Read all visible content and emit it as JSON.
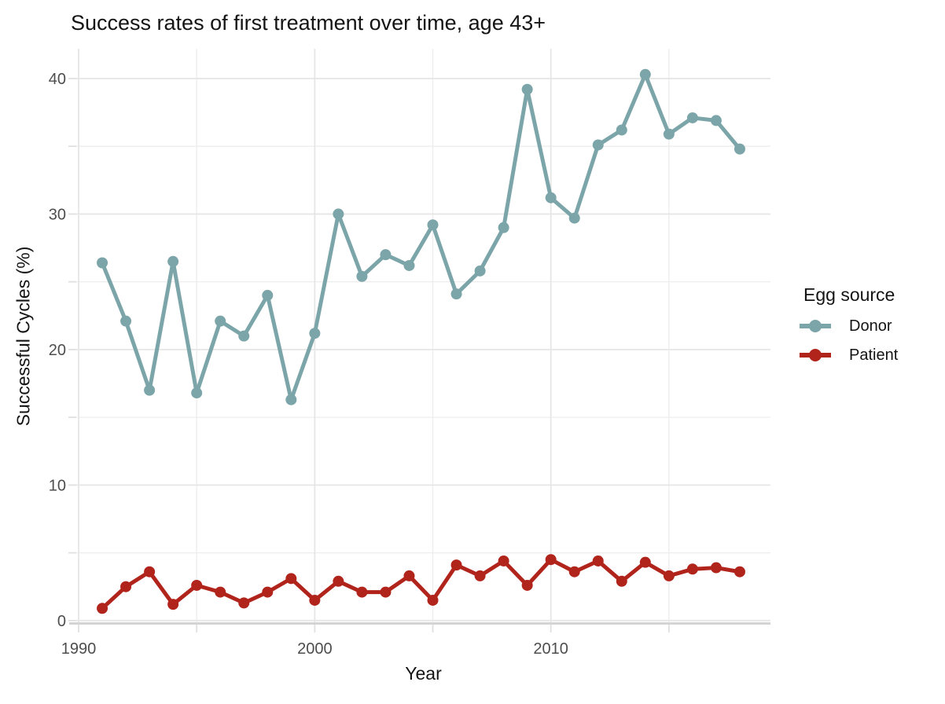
{
  "title": "Success rates of first treatment over time, age 43+",
  "axes": {
    "x_title": "Year",
    "y_title": "Successful Cycles (%)",
    "x_tick_labels": [
      "1990",
      "2000",
      "2010"
    ],
    "y_tick_labels": [
      "0",
      "10",
      "20",
      "30",
      "40"
    ]
  },
  "legend": {
    "title": "Egg source",
    "items": [
      {
        "label": "Donor",
        "color": "#7CA5A9"
      },
      {
        "label": "Patient",
        "color": "#B1241B"
      }
    ]
  },
  "colors": {
    "donor": "#7CA5A9",
    "patient": "#B1241B",
    "grid_major": "#E6E6E6",
    "grid_minor": "#EDEDED",
    "axis_line": "#D4D4D4",
    "tick_mark": "#E0E0E0",
    "tick_text": "#4D4D4D",
    "text": "#141414"
  },
  "chart_data": {
    "type": "line",
    "title": "Success rates of first treatment over time, age 43+",
    "xlabel": "Year",
    "ylabel": "Successful Cycles (%)",
    "x": [
      1991,
      1992,
      1993,
      1994,
      1995,
      1996,
      1997,
      1998,
      1999,
      2000,
      2001,
      2002,
      2003,
      2004,
      2005,
      2006,
      2007,
      2008,
      2009,
      2010,
      2011,
      2012,
      2013,
      2014,
      2015,
      2016,
      2017,
      2018
    ],
    "series": [
      {
        "name": "Donor",
        "color": "#7CA5A9",
        "values": [
          26.4,
          22.1,
          17.0,
          26.5,
          16.8,
          22.1,
          21.0,
          24.0,
          16.3,
          21.2,
          30.0,
          25.4,
          27.0,
          26.2,
          29.2,
          24.1,
          25.8,
          29.0,
          39.2,
          31.2,
          29.7,
          35.1,
          36.2,
          40.3,
          35.9,
          37.1,
          36.9,
          34.8
        ]
      },
      {
        "name": "Patient",
        "color": "#B1241B",
        "values": [
          0.9,
          2.5,
          3.6,
          1.2,
          2.6,
          2.1,
          1.3,
          2.1,
          3.1,
          1.5,
          2.9,
          2.1,
          2.1,
          3.3,
          1.5,
          4.1,
          3.3,
          4.4,
          2.6,
          4.5,
          3.6,
          4.4,
          2.9,
          4.3,
          3.3,
          3.8,
          3.9,
          3.6
        ]
      }
    ],
    "xlim": [
      1989.9,
      2019.3
    ],
    "ylim": [
      -0.3,
      42.2
    ],
    "x_ticks": {
      "major": [
        1990,
        2000,
        2010
      ],
      "minor": [
        1995,
        2005,
        2015
      ]
    },
    "y_ticks": {
      "major": [
        0,
        10,
        20,
        30,
        40
      ],
      "minor": [
        5,
        15,
        25,
        35
      ]
    },
    "grid": true,
    "legend_position": "right",
    "legend_title": "Egg source"
  }
}
